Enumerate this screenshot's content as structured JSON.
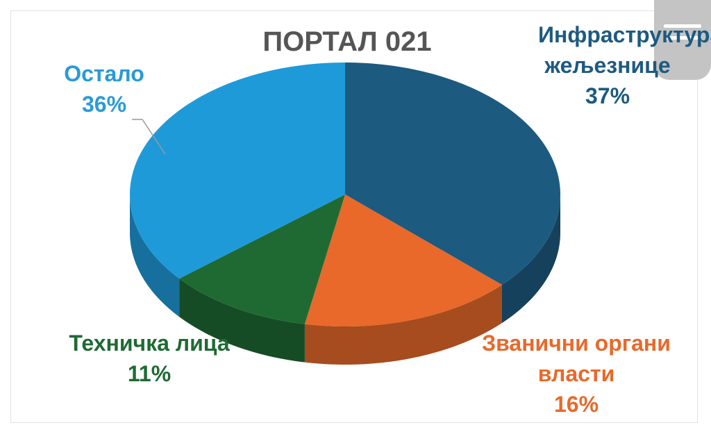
{
  "chart_data": {
    "type": "pie",
    "title": "ПОРТАЛ 021",
    "categories": [
      "Инфраструктура жељезнице",
      "Званични органи власти",
      "Техничка лица",
      "Остало"
    ],
    "values": [
      37,
      16,
      11,
      36
    ],
    "value_labels": [
      "37%",
      "16%",
      "11%",
      "36%"
    ],
    "colors": [
      "#1d5a80",
      "#e8692a",
      "#1f6a33",
      "#1f9ad9"
    ]
  }
}
